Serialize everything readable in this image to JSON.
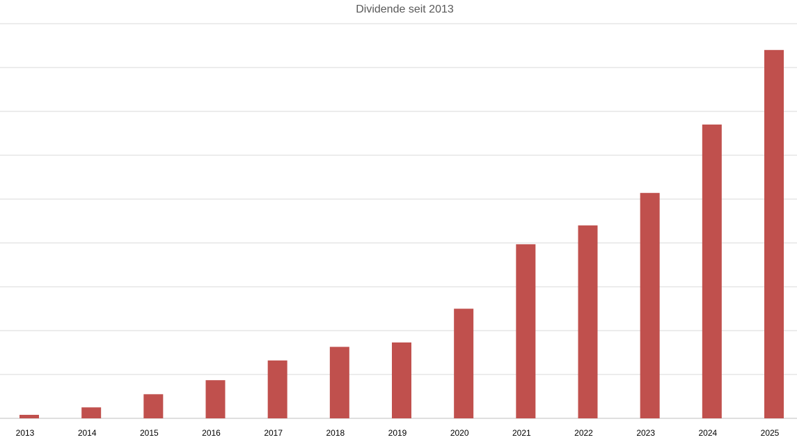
{
  "chart_data": {
    "type": "bar",
    "title": "Dividende seit 2013",
    "xlabel": "",
    "ylabel": "",
    "categories": [
      "2013",
      "2014",
      "2015",
      "2016",
      "2017",
      "2018",
      "2019",
      "2020",
      "2021",
      "2022",
      "2023",
      "2024",
      "2025"
    ],
    "series": [
      {
        "values": [
          0.08,
          0.25,
          0.55,
          0.87,
          1.32,
          1.63,
          1.73,
          2.5,
          3.97,
          4.4,
          5.14,
          6.7,
          8.4
        ]
      }
    ],
    "ylim": [
      0,
      9
    ],
    "grid": true,
    "colors": {
      "bar": "#c0504d",
      "grid": "#d9d9d9",
      "title": "#595959"
    }
  }
}
